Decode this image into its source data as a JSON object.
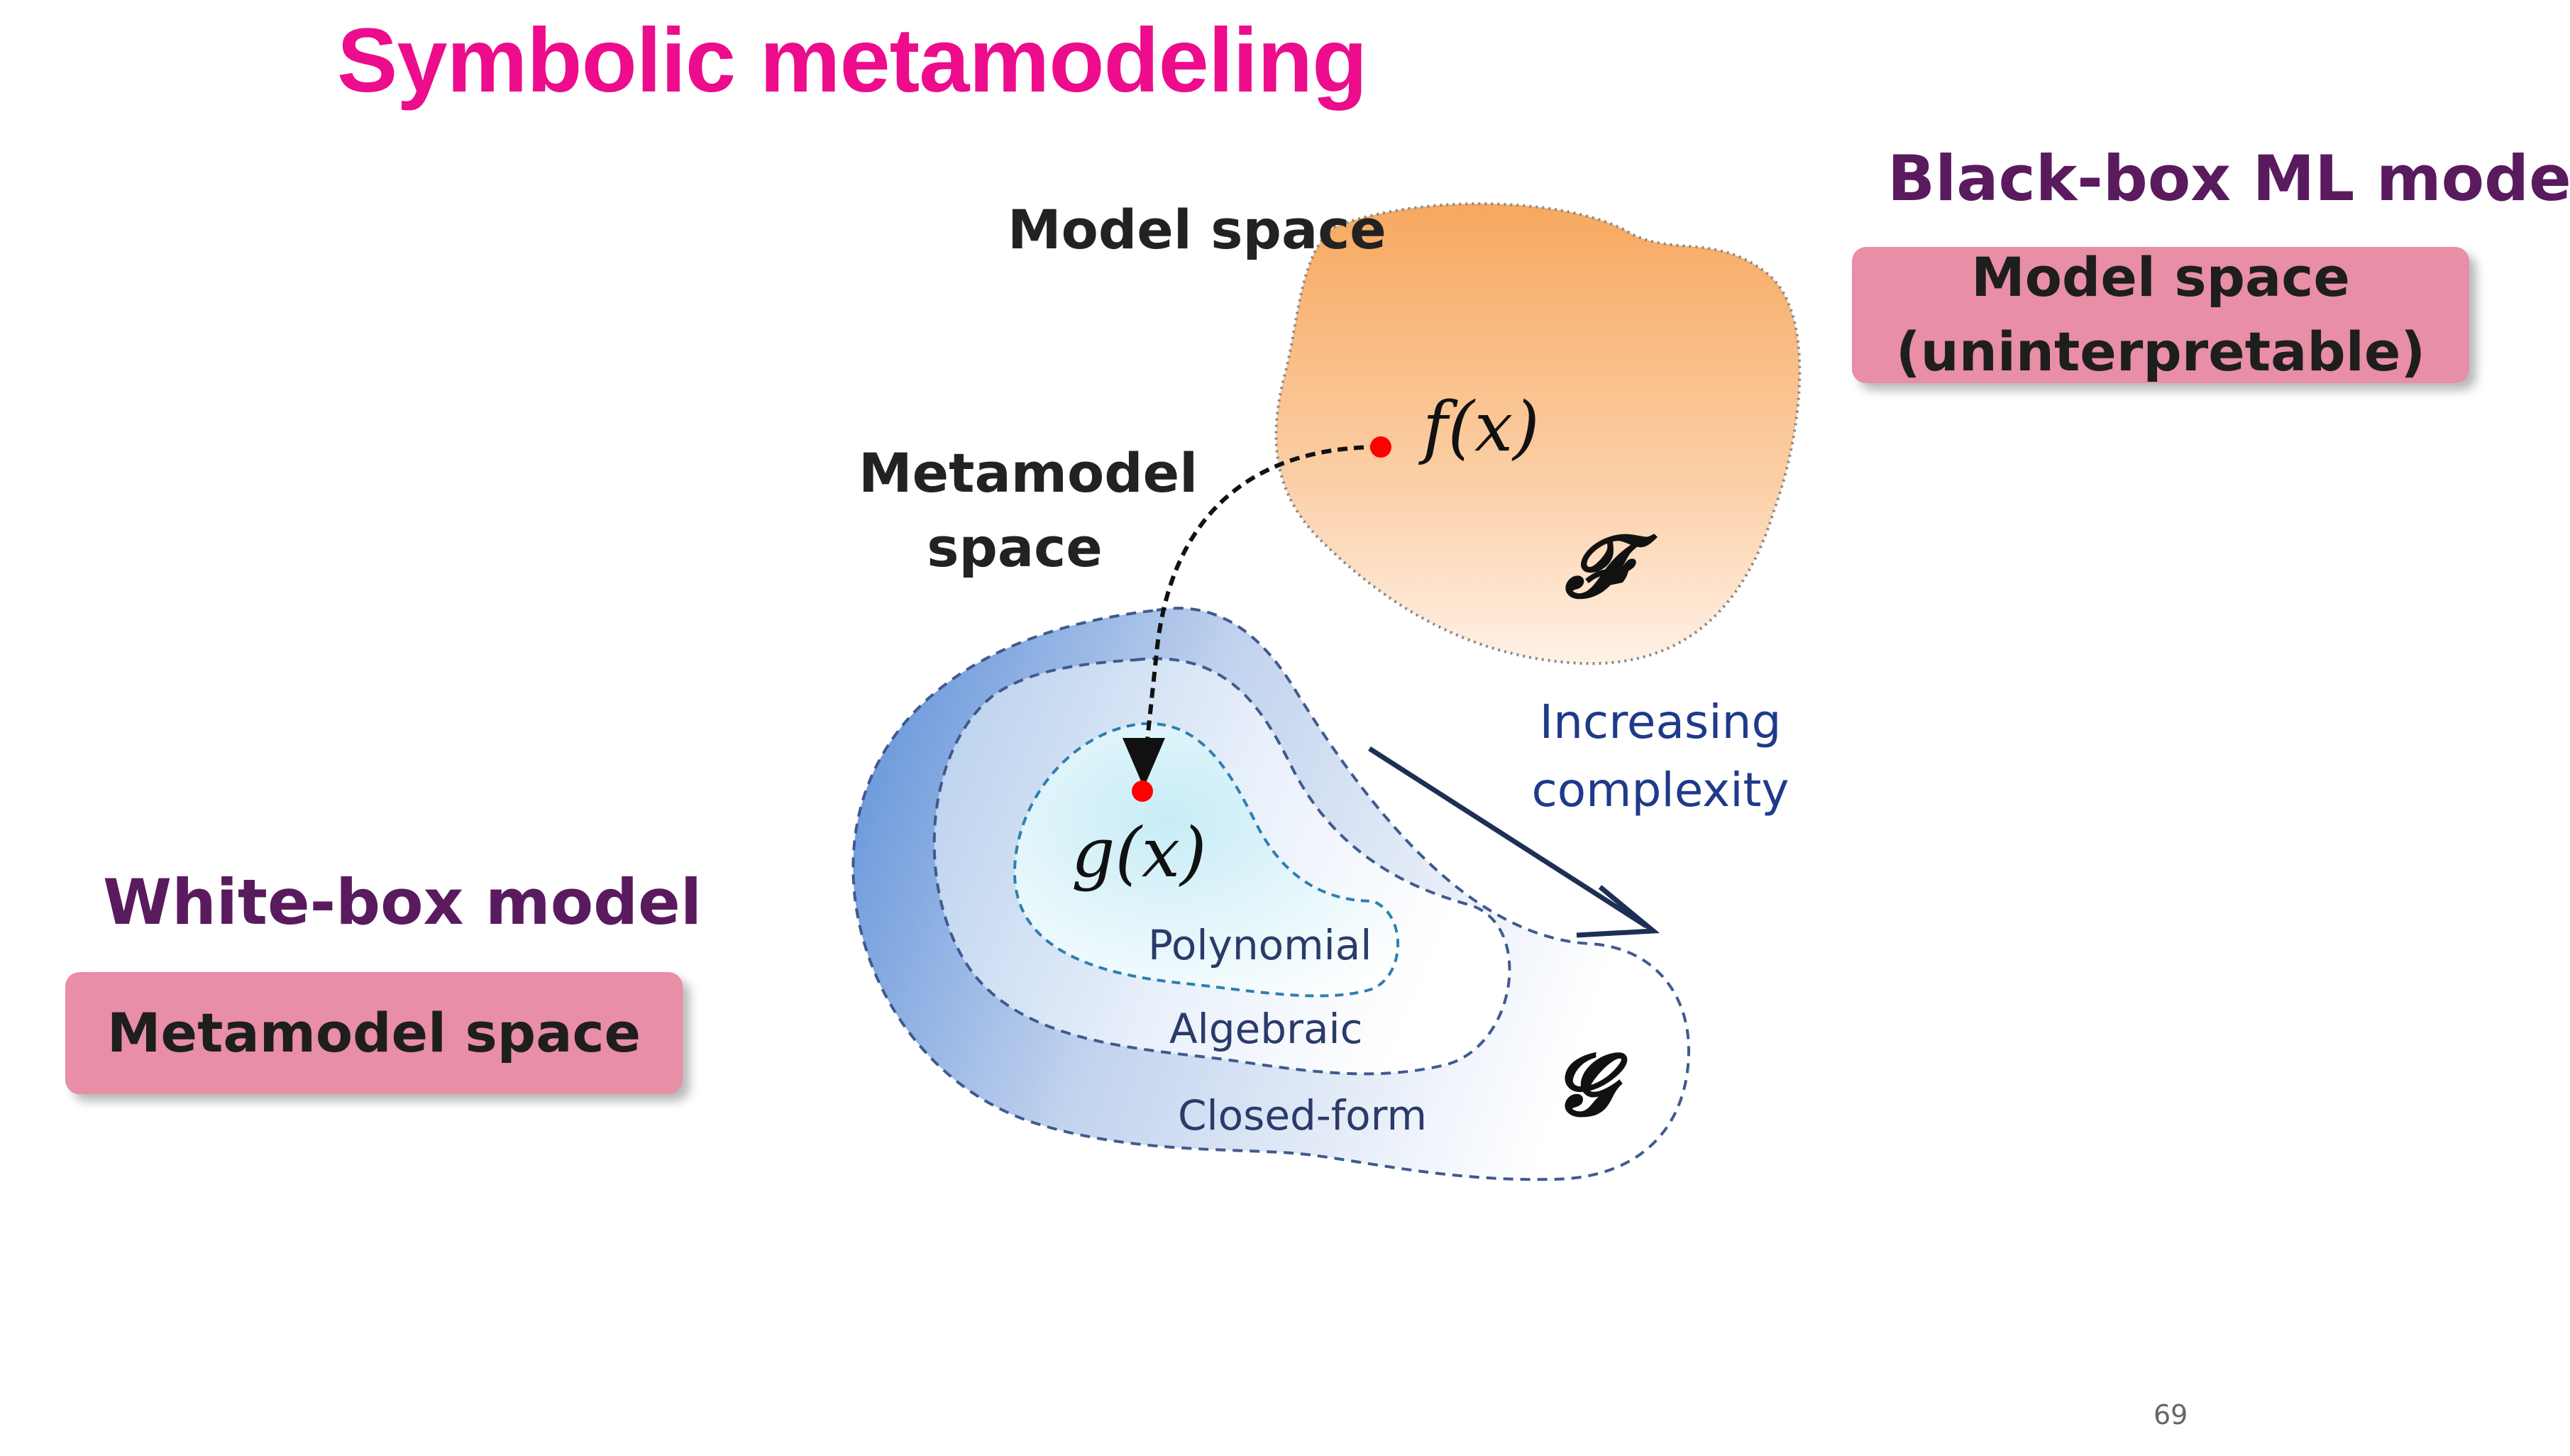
{
  "title": "Symbolic metamodeling",
  "right_panel": {
    "heading": "Black-box ML model",
    "box_line1": "Model space",
    "box_line2": "(uninterpretable)"
  },
  "left_panel": {
    "heading": "White-box model",
    "box_label": "Metamodel space"
  },
  "diagram": {
    "model_space_label": "Model space",
    "metamodel_label_line1": "Metamodel",
    "metamodel_label_line2": "space",
    "f_of_x": "f(x)",
    "g_of_x": "g(x)",
    "set_F": "𝓕",
    "set_G": "𝓖",
    "regions": {
      "polynomial": "Polynomial",
      "algebraic": "Algebraic",
      "closed_form": "Closed-form"
    },
    "complexity_line1": "Increasing",
    "complexity_line2": "complexity",
    "colors": {
      "model_space_fill": "#f7a85f",
      "metamodel_fill": "#5b8ed8",
      "inner_fill": "#c7ecf6",
      "point": "#ff0000",
      "arrow": "#1e2f55"
    }
  },
  "page_number": "69"
}
